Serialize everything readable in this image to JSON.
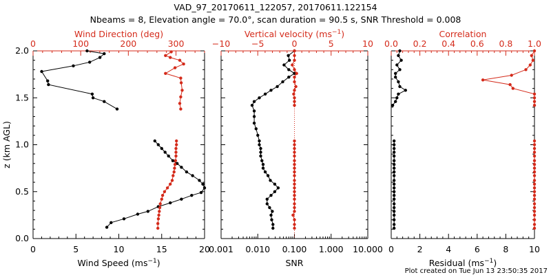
{
  "title": {
    "line1": "VAD_97_20170611_122057, 20170611.122154",
    "line2": "Nbeams = 8, Elevation angle = 70.0°, scan duration = 90.5 s, SNR Threshold = 0.008"
  },
  "footer": "Plot created on Tue Jun 13 23:50:35 2017",
  "colors": {
    "black_series": "#000000",
    "red_series": "#d42a1a",
    "top_axis": "#d42a1a"
  },
  "chart_data": [
    {
      "type": "line",
      "panel": "wind",
      "ylabel": "z (km AGL)",
      "ylim": [
        0,
        2
      ],
      "yticks": [
        "0.0",
        "0.5",
        "1.0",
        "1.5",
        "2.0"
      ],
      "bottom_axis": {
        "label": "Wind Speed",
        "unit": "(ms",
        "unit_exp": "−1",
        "unit_close": ")",
        "range": [
          0,
          20
        ],
        "ticks": [
          "0",
          "5",
          "10",
          "15",
          "20"
        ]
      },
      "top_axis": {
        "label": "Wind Direction (deg)",
        "range": [
          0,
          360
        ],
        "ticks": [
          "0",
          "100",
          "200",
          "300"
        ]
      },
      "series": [
        {
          "axis": "bottom",
          "color": "#000000",
          "points": [
            [
              8.6,
              0.12
            ],
            [
              9.1,
              0.17
            ],
            [
              10.6,
              0.21
            ],
            [
              12.2,
              0.26
            ],
            [
              13.4,
              0.29
            ],
            [
              14.6,
              0.34
            ],
            [
              16,
              0.38
            ],
            [
              17.3,
              0.42
            ],
            [
              18.5,
              0.46
            ],
            [
              19.6,
              0.49
            ],
            [
              20,
              0.54
            ],
            [
              19.8,
              0.58
            ],
            [
              19.4,
              0.62
            ],
            [
              18.6,
              0.67
            ],
            [
              17.9,
              0.71
            ],
            [
              17.3,
              0.76
            ],
            [
              16.8,
              0.8
            ],
            [
              16.3,
              0.83
            ],
            [
              15.8,
              0.88
            ],
            [
              15.4,
              0.92
            ],
            [
              15,
              0.96
            ],
            [
              14.6,
              1.0
            ],
            [
              14.2,
              1.04
            ],
            [
              null,
              null
            ],
            [
              9.8,
              1.38
            ],
            [
              8.3,
              1.46
            ],
            [
              7,
              1.5
            ],
            [
              6.9,
              1.54
            ],
            [
              1.8,
              1.64
            ],
            [
              1.7,
              1.68
            ],
            [
              1,
              1.78
            ],
            [
              4.7,
              1.84
            ],
            [
              6.6,
              1.88
            ],
            [
              7.8,
              1.93
            ],
            [
              8.3,
              1.97
            ],
            [
              6.3,
              2.0
            ]
          ]
        },
        {
          "axis": "top",
          "color": "#d42a1a",
          "points": [
            [
              262,
              0.11
            ],
            [
              262,
              0.16
            ],
            [
              263,
              0.21
            ],
            [
              264,
              0.25
            ],
            [
              265,
              0.29
            ],
            [
              266,
              0.33
            ],
            [
              267,
              0.37
            ],
            [
              270,
              0.42
            ],
            [
              272,
              0.46
            ],
            [
              276,
              0.5
            ],
            [
              282,
              0.54
            ],
            [
              288,
              0.58
            ],
            [
              292,
              0.62
            ],
            [
              294,
              0.67
            ],
            [
              296,
              0.71
            ],
            [
              297,
              0.75
            ],
            [
              298,
              0.79
            ],
            [
              299,
              0.83
            ],
            [
              300,
              0.88
            ],
            [
              300,
              0.92
            ],
            [
              300,
              0.96
            ],
            [
              301,
              1.0
            ],
            [
              301,
              1.04
            ],
            [
              null,
              null
            ],
            [
              310,
              1.38
            ],
            [
              308,
              1.44
            ],
            [
              310,
              1.51
            ],
            [
              313,
              1.58
            ],
            [
              311,
              1.66
            ],
            [
              310,
              1.71
            ],
            [
              278,
              1.76
            ],
            [
              298,
              1.82
            ],
            [
              316,
              1.86
            ],
            [
              308,
              1.9
            ],
            [
              288,
              1.93
            ],
            [
              278,
              1.95
            ],
            [
              290,
              1.99
            ]
          ]
        }
      ]
    },
    {
      "type": "line",
      "panel": "snr",
      "ylim": [
        0,
        2
      ],
      "bottom_axis": {
        "label": "SNR",
        "scale": "log",
        "range": [
          0.001,
          10
        ],
        "ticks": [
          "0.001",
          "0.010",
          "0.100",
          "1.000",
          "10.000"
        ]
      },
      "top_axis": {
        "label": "Vertical velocity",
        "unit": "(ms",
        "unit_exp": "−1",
        "unit_close": ")",
        "range": [
          -10,
          10
        ],
        "ticks": [
          "−10",
          "−5",
          "0",
          "5",
          "10"
        ]
      },
      "reference_line": {
        "axis": "top",
        "value": 0,
        "style": "dotted"
      },
      "series": [
        {
          "axis": "bottom",
          "color": "#000000",
          "points": [
            [
              0.026,
              0.11
            ],
            [
              0.026,
              0.15
            ],
            [
              0.024,
              0.2
            ],
            [
              0.023,
              0.25
            ],
            [
              0.025,
              0.29
            ],
            [
              0.021,
              0.33
            ],
            [
              0.018,
              0.37
            ],
            [
              0.018,
              0.42
            ],
            [
              0.023,
              0.46
            ],
            [
              0.029,
              0.5
            ],
            [
              0.036,
              0.54
            ],
            [
              0.029,
              0.58
            ],
            [
              0.022,
              0.62
            ],
            [
              0.019,
              0.67
            ],
            [
              0.016,
              0.71
            ],
            [
              0.014,
              0.75
            ],
            [
              0.014,
              0.79
            ],
            [
              0.013,
              0.83
            ],
            [
              0.012,
              0.88
            ],
            [
              0.012,
              0.92
            ],
            [
              0.012,
              0.96
            ],
            [
              0.011,
              1.0
            ],
            [
              0.011,
              1.04
            ],
            [
              0.01,
              1.1
            ],
            [
              0.009,
              1.17
            ],
            [
              0.008,
              1.23
            ],
            [
              0.008,
              1.3
            ],
            [
              0.008,
              1.36
            ],
            [
              0.007,
              1.42
            ],
            [
              0.008,
              1.46
            ],
            [
              0.011,
              1.5
            ],
            [
              0.016,
              1.54
            ],
            [
              0.023,
              1.58
            ],
            [
              0.034,
              1.62
            ],
            [
              0.048,
              1.67
            ],
            [
              0.07,
              1.72
            ],
            [
              0.1,
              1.76
            ],
            [
              0.07,
              1.8
            ],
            [
              0.052,
              1.85
            ],
            [
              0.073,
              1.9
            ],
            [
              0.068,
              1.95
            ],
            [
              0.1,
              2.0
            ]
          ]
        },
        {
          "axis": "top",
          "color": "#d42a1a",
          "points": [
            [
              0,
              0.11
            ],
            [
              0,
              0.15
            ],
            [
              0,
              0.2
            ],
            [
              -0.2,
              0.25
            ],
            [
              0,
              0.29
            ],
            [
              0,
              0.33
            ],
            [
              0,
              0.37
            ],
            [
              0,
              0.42
            ],
            [
              0,
              0.46
            ],
            [
              0,
              0.5
            ],
            [
              0,
              0.54
            ],
            [
              0,
              0.58
            ],
            [
              0,
              0.62
            ],
            [
              0,
              0.67
            ],
            [
              0,
              0.71
            ],
            [
              0,
              0.75
            ],
            [
              0,
              0.79
            ],
            [
              0,
              0.83
            ],
            [
              0,
              0.88
            ],
            [
              0,
              0.92
            ],
            [
              0,
              0.96
            ],
            [
              0,
              1.0
            ],
            [
              0,
              1.04
            ],
            [
              null,
              null
            ],
            [
              0,
              1.42
            ],
            [
              0,
              1.46
            ],
            [
              0,
              1.5
            ],
            [
              -0.1,
              1.54
            ],
            [
              0,
              1.58
            ],
            [
              0.2,
              1.62
            ],
            [
              0,
              1.67
            ],
            [
              0,
              1.72
            ],
            [
              0.3,
              1.76
            ],
            [
              0,
              1.8
            ],
            [
              -0.3,
              1.85
            ],
            [
              0,
              1.9
            ],
            [
              0,
              1.95
            ],
            [
              0,
              2.0
            ]
          ]
        }
      ]
    },
    {
      "type": "line",
      "panel": "residual",
      "ylim": [
        0,
        2
      ],
      "bottom_axis": {
        "label": "Residual",
        "unit": "(ms",
        "unit_exp": "−1",
        "unit_close": ")",
        "range": [
          0,
          10
        ],
        "ticks": [
          "0",
          "2",
          "4",
          "6",
          "8",
          "10"
        ]
      },
      "top_axis": {
        "label": "Correlation",
        "range": [
          0,
          1
        ],
        "ticks": [
          "0.0",
          "0.2",
          "0.4",
          "0.6",
          "0.8",
          "1.0"
        ]
      },
      "series": [
        {
          "axis": "bottom",
          "color": "#000000",
          "points": [
            [
              0.2,
              0.11
            ],
            [
              0.2,
              0.15
            ],
            [
              0.2,
              0.2
            ],
            [
              0.2,
              0.25
            ],
            [
              0.2,
              0.29
            ],
            [
              0.2,
              0.33
            ],
            [
              0.2,
              0.37
            ],
            [
              0.2,
              0.42
            ],
            [
              0.2,
              0.46
            ],
            [
              0.2,
              0.5
            ],
            [
              0.2,
              0.54
            ],
            [
              0.2,
              0.58
            ],
            [
              0.2,
              0.62
            ],
            [
              0.2,
              0.67
            ],
            [
              0.2,
              0.71
            ],
            [
              0.2,
              0.75
            ],
            [
              0.2,
              0.79
            ],
            [
              0.2,
              0.83
            ],
            [
              0.2,
              0.88
            ],
            [
              0.2,
              0.92
            ],
            [
              0.2,
              0.96
            ],
            [
              0.2,
              1.0
            ],
            [
              0.2,
              1.04
            ],
            [
              null,
              null
            ],
            [
              0.1,
              1.42
            ],
            [
              0.3,
              1.46
            ],
            [
              0.4,
              1.5
            ],
            [
              0.5,
              1.54
            ],
            [
              1.0,
              1.58
            ],
            [
              0.6,
              1.62
            ],
            [
              0.5,
              1.67
            ],
            [
              0.3,
              1.72
            ],
            [
              0.3,
              1.76
            ],
            [
              0.6,
              1.8
            ],
            [
              0.4,
              1.85
            ],
            [
              0.7,
              1.9
            ],
            [
              0.5,
              1.95
            ],
            [
              0.6,
              2.0
            ]
          ]
        },
        {
          "axis": "top",
          "color": "#d42a1a",
          "points": [
            [
              1,
              0.11
            ],
            [
              1,
              0.15
            ],
            [
              1,
              0.2
            ],
            [
              1,
              0.25
            ],
            [
              1,
              0.29
            ],
            [
              1,
              0.33
            ],
            [
              1,
              0.37
            ],
            [
              1,
              0.42
            ],
            [
              1,
              0.46
            ],
            [
              1,
              0.5
            ],
            [
              1,
              0.54
            ],
            [
              1,
              0.58
            ],
            [
              1,
              0.62
            ],
            [
              1,
              0.67
            ],
            [
              1,
              0.71
            ],
            [
              1,
              0.75
            ],
            [
              1,
              0.79
            ],
            [
              1,
              0.83
            ],
            [
              1,
              0.88
            ],
            [
              1,
              0.92
            ],
            [
              1,
              0.96
            ],
            [
              1,
              1.0
            ],
            [
              1,
              1.04
            ],
            [
              null,
              null
            ],
            [
              1,
              1.42
            ],
            [
              1,
              1.46
            ],
            [
              1,
              1.5
            ],
            [
              1,
              1.54
            ],
            [
              0.85,
              1.6
            ],
            [
              0.83,
              1.64
            ],
            [
              0.64,
              1.69
            ],
            [
              0.84,
              1.74
            ],
            [
              0.94,
              1.8
            ],
            [
              0.97,
              1.85
            ],
            [
              0.99,
              1.9
            ],
            [
              0.98,
              1.95
            ],
            [
              1,
              2.0
            ]
          ]
        }
      ]
    }
  ]
}
